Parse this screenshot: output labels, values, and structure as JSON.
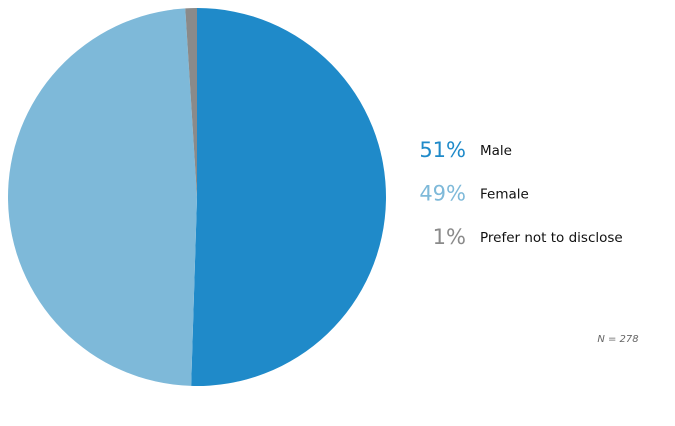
{
  "chart_data": {
    "type": "pie",
    "categories": [
      "Male",
      "Female",
      "Prefer not to disclose"
    ],
    "values": [
      51,
      49,
      1
    ],
    "value_labels": [
      "51%",
      "49%",
      "1%"
    ],
    "colors": [
      "#1f8ac9",
      "#7eb9d9",
      "#8a8a8a"
    ],
    "annotation": "N = 278"
  }
}
